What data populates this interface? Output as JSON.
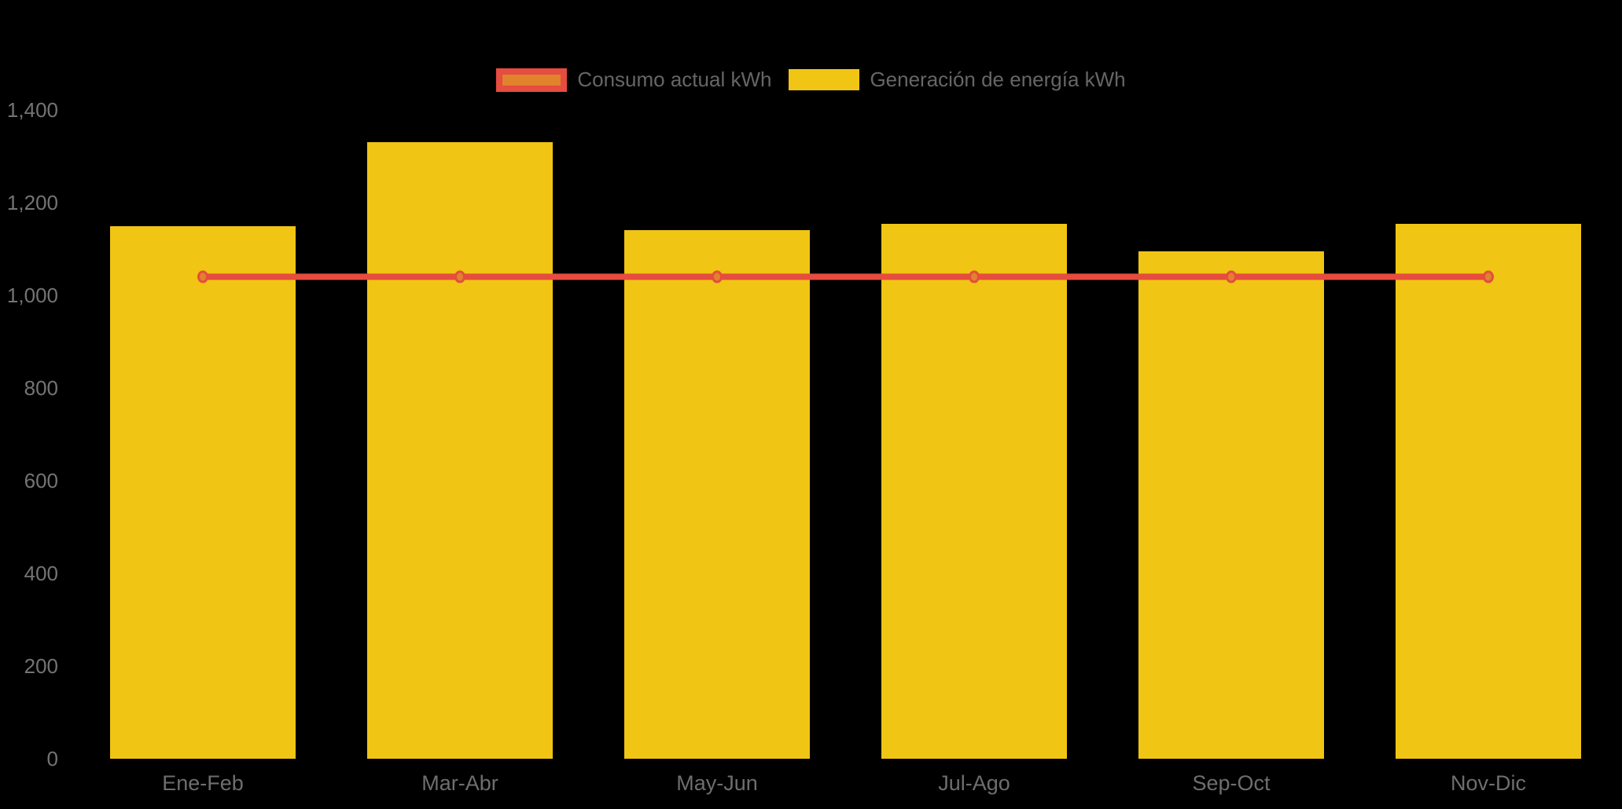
{
  "chart_data": {
    "type": "combo-bar-line",
    "categories": [
      "Ene-Feb",
      "Mar-Abr",
      "May-Jun",
      "Jul-Ago",
      "Sep-Oct",
      "Nov-Dic"
    ],
    "series": [
      {
        "name": "Consumo actual kWh",
        "type": "line",
        "color": "#E64C3F",
        "marker_fill": "#E0832C",
        "values": [
          1040,
          1040,
          1040,
          1040,
          1040,
          1040
        ]
      },
      {
        "name": "Generación de energía kWh",
        "type": "bar",
        "color": "#F0C513",
        "values": [
          1150,
          1330,
          1140,
          1155,
          1095,
          1155
        ]
      }
    ],
    "title": "",
    "xlabel": "",
    "ylabel": "",
    "ylim": [
      0,
      1400
    ],
    "yticks": [
      0,
      200,
      400,
      600,
      800,
      1000,
      1200,
      1400
    ],
    "grid": false,
    "legend_position": "top-center",
    "background": "#000000",
    "axis_text_color": "#747474",
    "legend_text_color": "#666666"
  }
}
